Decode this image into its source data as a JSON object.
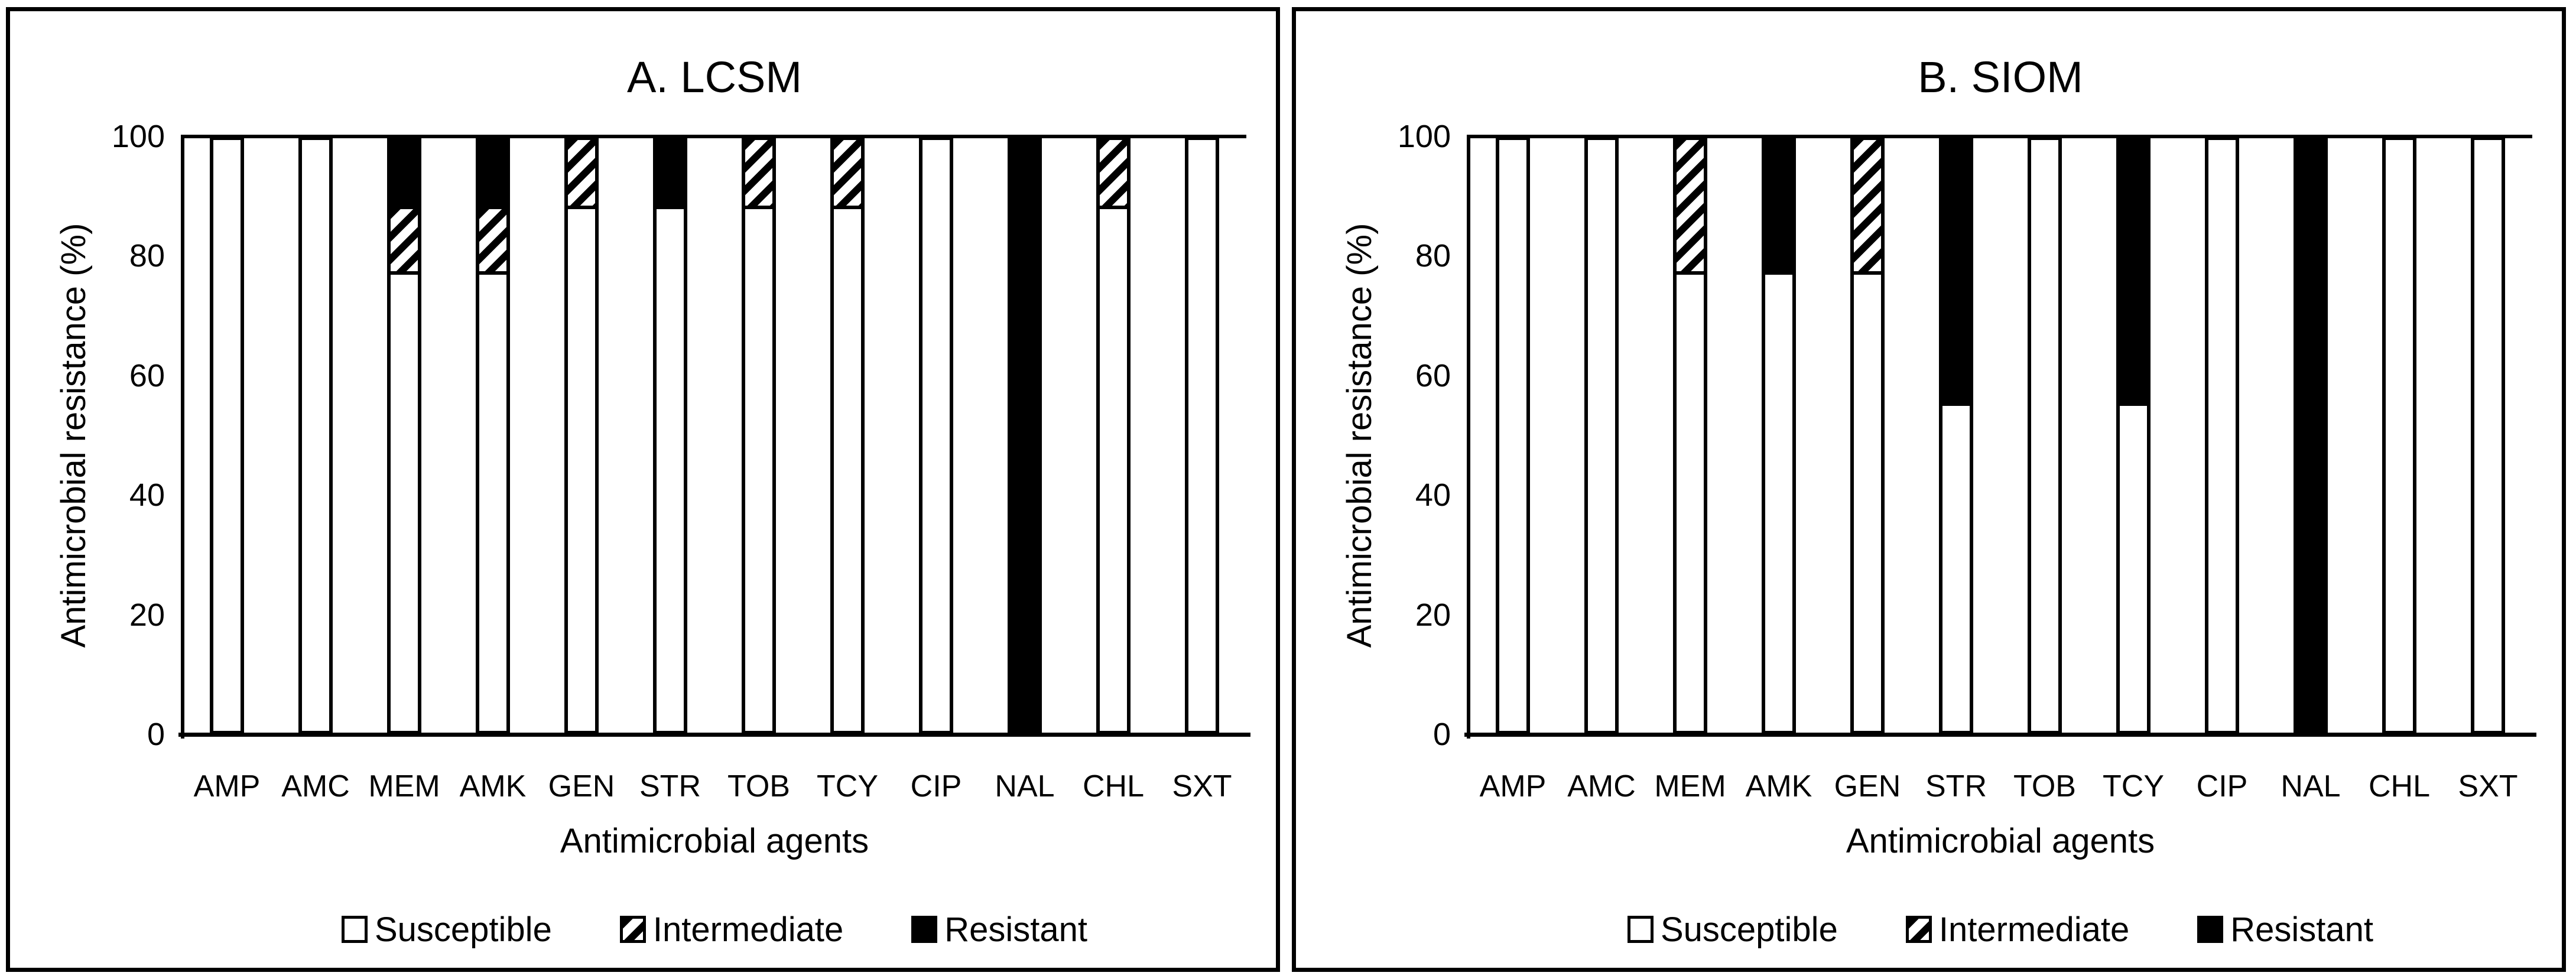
{
  "figure": {
    "background_color": "#ffffff",
    "border_color": "#000000",
    "bar_fill_colors": {
      "susceptible": "#ffffff",
      "intermediate_hatch": "#000000 diagonal stripes on #ffffff",
      "resistant": "#000000"
    }
  },
  "chart_data": [
    {
      "type": "bar",
      "stacked": true,
      "title": "A. LCSM",
      "xlabel": "Antimicrobial agents",
      "ylabel": "Antimicrobial resistance (%)",
      "ylim": [
        0,
        100
      ],
      "yticks": [
        0,
        20,
        40,
        60,
        80,
        100
      ],
      "grid": false,
      "legend_position": "bottom",
      "categories": [
        "AMP",
        "AMC",
        "MEM",
        "AMK",
        "GEN",
        "STR",
        "TOB",
        "TCY",
        "CIP",
        "NAL",
        "CHL",
        "SXT"
      ],
      "series": [
        {
          "name": "Susceptible",
          "pattern": "white",
          "values": [
            100,
            100,
            77.8,
            77.8,
            88.9,
            88.9,
            88.9,
            88.9,
            100,
            0,
            88.9,
            100
          ]
        },
        {
          "name": "Intermediate",
          "pattern": "hatch",
          "values": [
            0,
            0,
            11.1,
            11.1,
            11.1,
            0,
            11.1,
            11.1,
            0,
            0,
            11.1,
            0
          ]
        },
        {
          "name": "Resistant",
          "pattern": "black",
          "values": [
            0,
            0,
            11.1,
            11.1,
            0,
            11.1,
            0,
            0,
            0,
            100,
            0,
            0
          ]
        }
      ]
    },
    {
      "type": "bar",
      "stacked": true,
      "title": "B. SIOM",
      "xlabel": "Antimicrobial agents",
      "ylabel": "Antimicrobial resistance (%)",
      "ylim": [
        0,
        100
      ],
      "yticks": [
        0,
        20,
        40,
        60,
        80,
        100
      ],
      "grid": false,
      "legend_position": "bottom",
      "categories": [
        "AMP",
        "AMC",
        "MEM",
        "AMK",
        "GEN",
        "STR",
        "TOB",
        "TCY",
        "CIP",
        "NAL",
        "CHL",
        "SXT"
      ],
      "series": [
        {
          "name": "Susceptible",
          "pattern": "white",
          "values": [
            100,
            100,
            77.8,
            77.8,
            77.8,
            55.6,
            100,
            55.6,
            100,
            0,
            100,
            100
          ]
        },
        {
          "name": "Intermediate",
          "pattern": "hatch",
          "values": [
            0,
            0,
            22.2,
            0,
            22.2,
            0,
            0,
            0,
            0,
            0,
            0,
            0
          ]
        },
        {
          "name": "Resistant",
          "pattern": "black",
          "values": [
            0,
            0,
            0,
            22.2,
            0,
            44.4,
            0,
            44.4,
            0,
            100,
            0,
            0
          ]
        }
      ]
    }
  ]
}
